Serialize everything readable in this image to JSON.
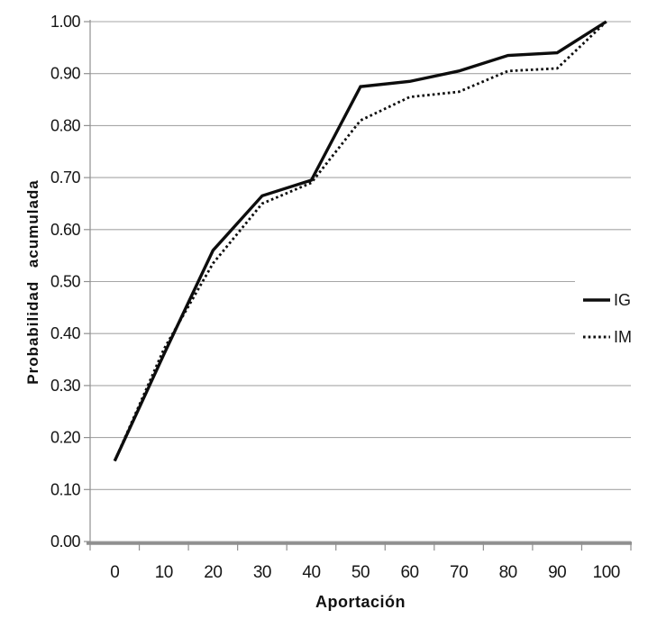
{
  "chart_data": {
    "type": "line",
    "title": "",
    "xlabel": "Aportación",
    "ylabel": "Probabilidad acumulada",
    "x": [
      0,
      10,
      20,
      30,
      40,
      50,
      60,
      70,
      80,
      90,
      100
    ],
    "xtick_labels": [
      "0",
      "10",
      "20",
      "30",
      "40",
      "50",
      "60",
      "70",
      "80",
      "90",
      "100"
    ],
    "ytick_labels": [
      "0.00",
      "0.10",
      "0.20",
      "0.30",
      "0.40",
      "0.50",
      "0.60",
      "0.70",
      "0.80",
      "0.90",
      "1.00"
    ],
    "ylim": [
      0,
      1
    ],
    "ytick_step": 0.1,
    "grid": "horizontal-only",
    "legend_position": "right-middle",
    "series": [
      {
        "name": "IG",
        "line_style": "solid",
        "color": "#0d0d0d",
        "values": [
          0.155,
          0.36,
          0.56,
          0.665,
          0.695,
          0.875,
          0.885,
          0.905,
          0.935,
          0.94,
          1.0
        ]
      },
      {
        "name": "IM",
        "line_style": "dotted",
        "color": "#0d0d0d",
        "values": [
          0.155,
          0.37,
          0.535,
          0.65,
          0.69,
          0.81,
          0.855,
          0.865,
          0.905,
          0.91,
          1.0
        ]
      }
    ],
    "colors": {
      "background": "#ffffff",
      "gridline": "#a6a6a6",
      "axis": "#8f8f8f",
      "tick_text": "#161616",
      "series": "#0d0d0d"
    }
  }
}
